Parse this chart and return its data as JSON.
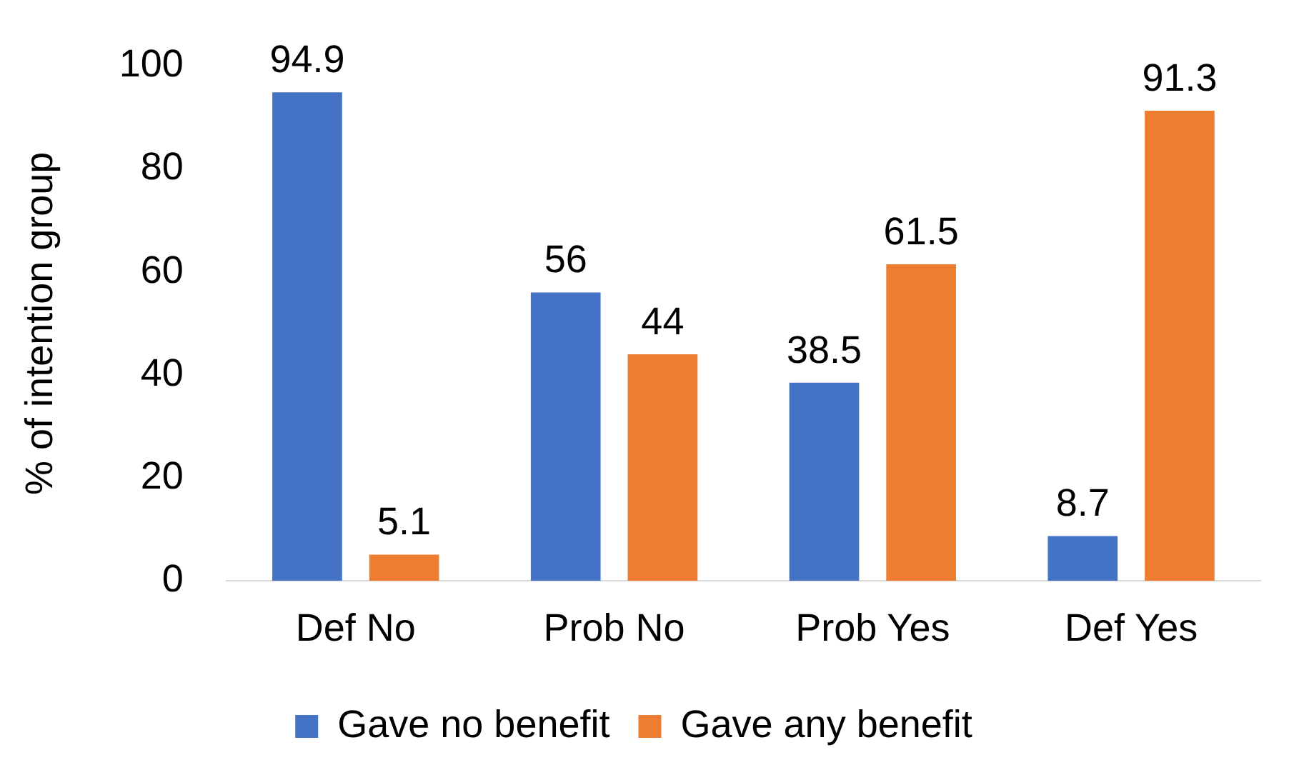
{
  "chart_data": {
    "type": "bar",
    "ylabel": "% of intention group",
    "categories": [
      "Def No",
      "Prob No",
      "Prob Yes",
      "Def Yes"
    ],
    "series": [
      {
        "name": "Gave no benefit",
        "color": "#4472c4",
        "values": [
          94.9,
          56,
          38.5,
          8.7
        ]
      },
      {
        "name": "Gave any benefit",
        "color": "#ed7d31",
        "values": [
          5.1,
          44,
          61.5,
          91.3
        ]
      }
    ],
    "ylim": [
      0,
      100
    ],
    "yticks": [
      0,
      20,
      40,
      60,
      80,
      100
    ],
    "grid": false,
    "legend": "bottom",
    "data_labels": true
  }
}
